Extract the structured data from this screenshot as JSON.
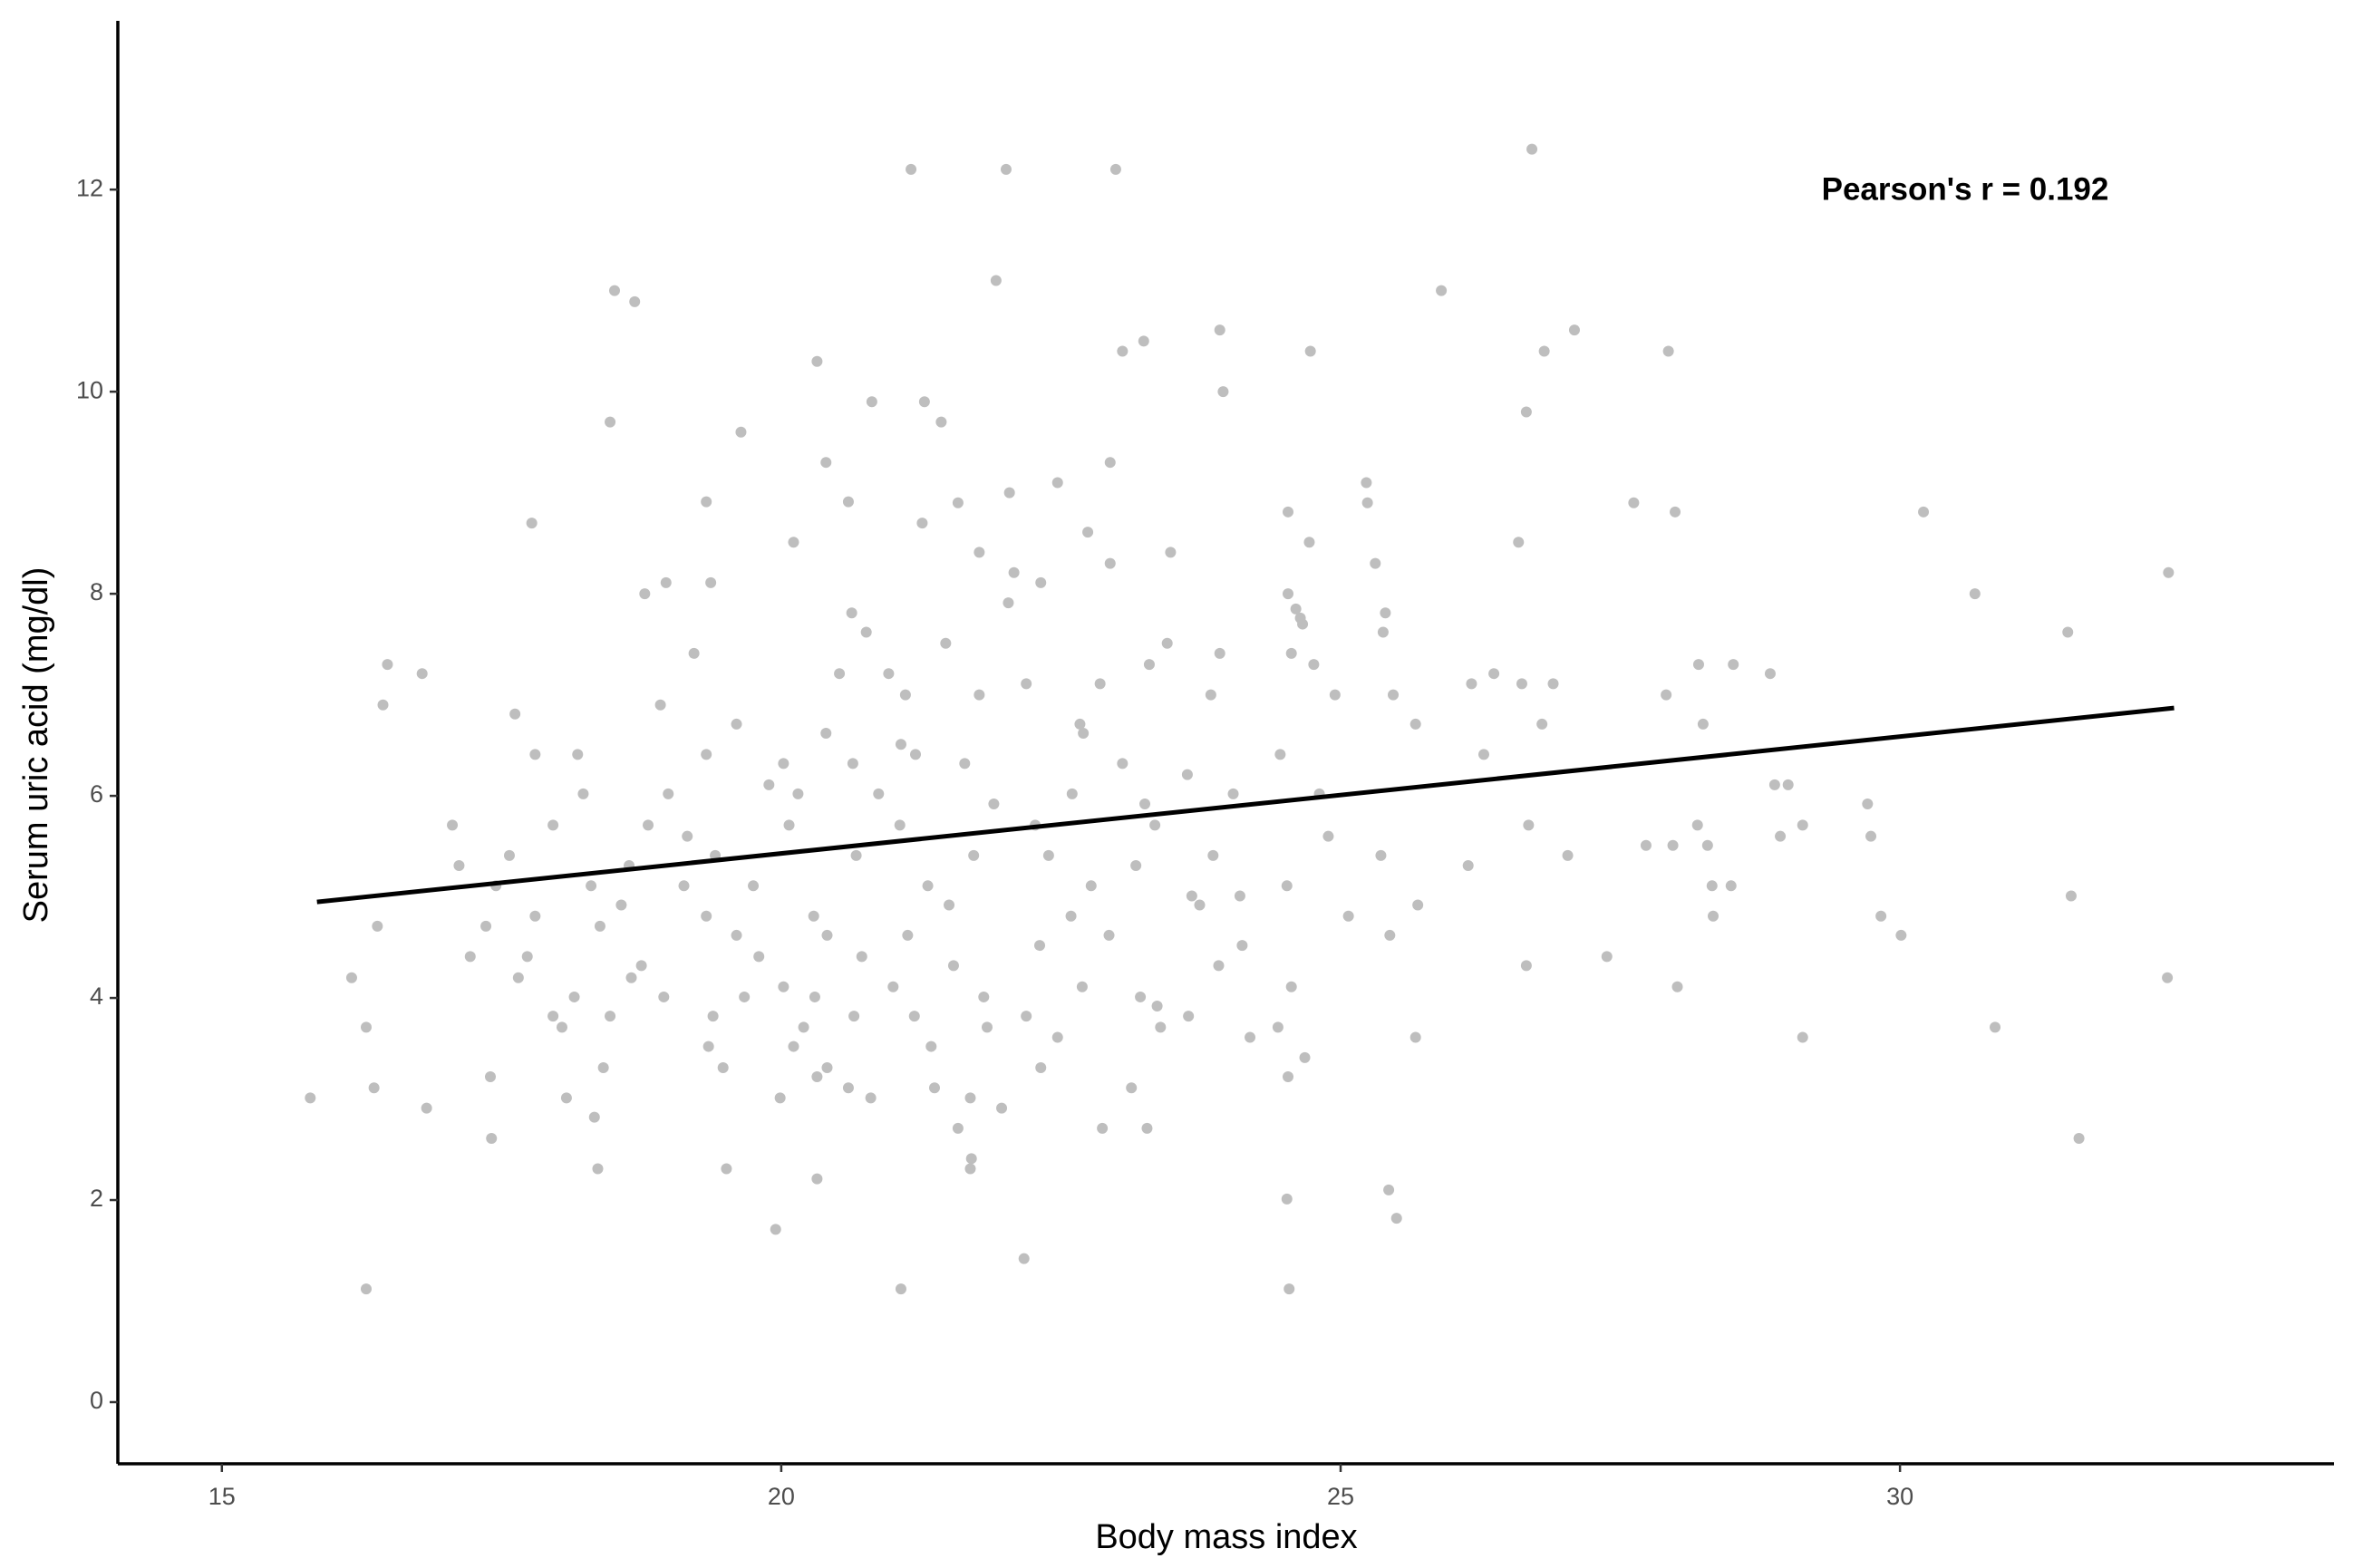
{
  "chart_data": {
    "type": "scatter",
    "x_label": "Body mass index",
    "y_label": "Serum uric acid (mg/dl)",
    "annotation": "Pearson's r = 0.192",
    "color": "#bebebe",
    "xlim": [
      14.07,
      33.88
    ],
    "ylim": [
      -0.61,
      13.67
    ],
    "xticks": [
      15,
      20,
      25,
      30
    ],
    "yticks": [
      0,
      2,
      4,
      6,
      8,
      10,
      12
    ],
    "grid": false,
    "x": [
      18.51,
      18.69,
      18.47,
      17.77,
      19.33,
      19.64,
      20.32,
      21.16,
      22.01,
      22.99,
      21.92,
      26.71,
      25.9,
      27.09,
      26.82,
      27.93,
      23.92,
      24.73,
      23.24,
      23.05,
      20.81,
      21.28,
      21.43,
      23.95,
      26.66,
      20.4,
      22.94,
      22.47,
      20.6,
      21.58,
      22.04,
      25.23,
      25.24,
      27.62,
      27.99,
      30.21,
      24.53,
      26.59,
      24.72,
      20.11,
      21.26,
      22.74,
      23.48,
      32.4,
      25.31,
      21.77,
      22.94,
      22.08,
      22.32,
      18.97,
      19.37,
      18.78,
      30.67,
      24.53,
      24.6,
      24.64,
      24.66,
      25.4,
      22.03,
      20.63,
      25.38,
      31.5,
      19.22,
      20.76,
      21.47,
      23.45,
      23.92,
      16.48,
      16.79,
      23.29,
      24.56,
      24.76,
      28.2,
      28.51,
      28.84,
      26.37,
      26.17,
      26.9,
      26.62,
      20.52,
      20.96,
      22.19,
      22.85,
      16.44,
      17.62,
      18.92,
      21.11,
      21.77,
      23.84,
      24.95,
      25.47,
      27.91,
      25.67,
      26.8,
      22.67,
      19.6,
      20.4,
      21.07,
      22.7,
      28.24,
      18.18,
      19.33,
      19.89,
      20.02,
      20.64,
      21.2,
      21.64,
      23.05,
      23.63,
      24.46,
      26.28,
      28.88,
      29.0,
      17.8,
      18.23,
      18.99,
      20.15,
      20.87,
      21.9,
      22.6,
      23.25,
      24.04,
      24.81,
      29.71,
      17.06,
      17.96,
      18.81,
      20.07,
      21.06,
      22.27,
      23.34,
      26.68,
      28.19,
      29.13,
      29.74,
      28.93,
      19.16,
      24.89,
      17.12,
      17.57,
      18.64,
      19.41,
      20.67,
      21.72,
      22.39,
      23.17,
      23.86,
      25.36,
      26.14,
      27.03,
      27.73,
      27.97,
      28.28,
      17.45,
      18.3,
      19.13,
      19.75,
      21.31,
      22.77,
      23.67,
      24.1,
      24.52,
      28.32,
      28.49,
      31.53,
      17.8,
      18.57,
      19.33,
      20.29,
      21.5,
      22.59,
      23.74,
      25.07,
      25.69,
      28.33,
      29.83,
      16.39,
      17.36,
      18.38,
      19.6,
      20.41,
      21.13,
      22.93,
      24.12,
      25.44,
      30.01,
      17.22,
      17.73,
      18.75,
      19.8,
      20.72,
      21.54,
      22.31,
      23.91,
      26.66,
      27.38,
      16.16,
      17.65,
      18.66,
      20.02,
      21.0,
      22.69,
      24.56,
      28.01,
      32.39,
      18.15,
      18.95,
      19.67,
      20.3,
      21.81,
      23.21,
      17.96,
      18.47,
      19.39,
      20.65,
      21.19,
      22.19,
      23.36,
      23.64,
      16.29,
      18.04,
      20.2,
      21.84,
      23.39,
      24.19,
      25.67,
      29.13,
      30.85,
      19.35,
      20.11,
      21.34,
      22.47,
      24.44,
      19.48,
      20.41,
      22.32,
      24.68,
      17.4,
      18.41,
      20.32,
      23.13,
      24.53,
      16.36,
      20.6,
      21.37,
      15.79,
      18.08,
      19.99,
      20.8,
      21.69,
      16.83,
      21.97,
      18.33,
      21.58,
      22.87,
      23.27,
      17.41,
      31.6,
      21.7,
      18.36,
      19.51,
      21.69,
      20.32,
      25.43,
      24.52,
      25.5,
      19.95,
      22.17,
      16.29,
      21.07,
      24.54
    ],
    "values": [
      11.0,
      10.89,
      9.7,
      8.7,
      8.91,
      9.6,
      10.3,
      12.2,
      12.2,
      12.2,
      11.1,
      12.4,
      11.0,
      10.61,
      10.4,
      10.4,
      10.61,
      10.4,
      10.5,
      10.4,
      9.9,
      9.9,
      9.7,
      10.0,
      9.8,
      9.3,
      9.3,
      9.1,
      8.91,
      8.9,
      9.0,
      9.1,
      8.9,
      8.9,
      8.81,
      8.81,
      8.81,
      8.51,
      8.51,
      8.51,
      8.7,
      8.61,
      8.41,
      8.21,
      8.3,
      8.41,
      8.3,
      8.21,
      8.11,
      8.11,
      8.11,
      8.0,
      8.0,
      8.0,
      7.85,
      7.76,
      7.7,
      7.81,
      7.91,
      7.81,
      7.62,
      7.62,
      7.41,
      7.62,
      7.51,
      7.51,
      7.41,
      7.3,
      7.21,
      7.3,
      7.41,
      7.3,
      7.3,
      7.3,
      7.21,
      7.21,
      7.11,
      7.11,
      7.11,
      7.21,
      7.21,
      7.11,
      7.11,
      6.9,
      6.81,
      6.9,
      7.0,
      7.0,
      7.0,
      7.0,
      7.0,
      7.0,
      6.71,
      6.71,
      6.71,
      6.71,
      6.62,
      6.51,
      6.62,
      6.71,
      6.41,
      6.41,
      6.11,
      6.32,
      6.32,
      6.41,
      6.32,
      6.32,
      6.21,
      6.41,
      6.41,
      6.11,
      6.11,
      6.41,
      6.02,
      6.02,
      6.02,
      6.02,
      5.92,
      6.02,
      5.92,
      6.02,
      6.02,
      5.92,
      5.71,
      5.71,
      5.71,
      5.71,
      5.71,
      5.71,
      5.71,
      5.71,
      5.71,
      5.71,
      5.6,
      5.6,
      5.6,
      5.6,
      5.31,
      5.41,
      5.31,
      5.41,
      5.41,
      5.41,
      5.41,
      5.31,
      5.41,
      5.41,
      5.31,
      5.41,
      5.51,
      5.51,
      5.51,
      5.11,
      5.11,
      5.11,
      5.11,
      5.11,
      5.11,
      5.01,
      5.01,
      5.11,
      5.11,
      5.11,
      5.01,
      4.81,
      4.92,
      4.81,
      4.81,
      4.92,
      4.81,
      4.92,
      4.81,
      4.92,
      4.81,
      4.81,
      4.71,
      4.71,
      4.71,
      4.62,
      4.62,
      4.62,
      4.62,
      4.52,
      4.62,
      4.62,
      4.41,
      4.41,
      4.32,
      4.41,
      4.41,
      4.32,
      4.52,
      4.32,
      4.32,
      4.41,
      4.2,
      4.2,
      4.2,
      4.11,
      4.11,
      4.11,
      4.11,
      4.11,
      4.2,
      4.01,
      4.01,
      4.01,
      4.01,
      4.01,
      4.01,
      3.82,
      3.82,
      3.82,
      3.82,
      3.82,
      3.82,
      3.92,
      3.82,
      3.71,
      3.71,
      3.71,
      3.71,
      3.71,
      3.61,
      3.61,
      3.61,
      3.71,
      3.52,
      3.52,
      3.52,
      3.61,
      3.71,
      3.31,
      3.31,
      3.31,
      3.41,
      3.22,
      3.31,
      3.22,
      3.11,
      3.22,
      3.11,
      3.11,
      3.11,
      3.01,
      3.01,
      3.01,
      3.01,
      3.01,
      2.91,
      2.91,
      2.82,
      2.71,
      2.71,
      2.71,
      2.61,
      2.61,
      2.41,
      2.31,
      2.31,
      2.31,
      2.21,
      2.1,
      2.01,
      1.82,
      1.71,
      1.42,
      1.12,
      1.12,
      1.12
    ],
    "trend_line": {
      "color": "#000000",
      "x": [
        15.85,
        32.45
      ],
      "values": [
        4.95,
        6.87
      ]
    }
  }
}
